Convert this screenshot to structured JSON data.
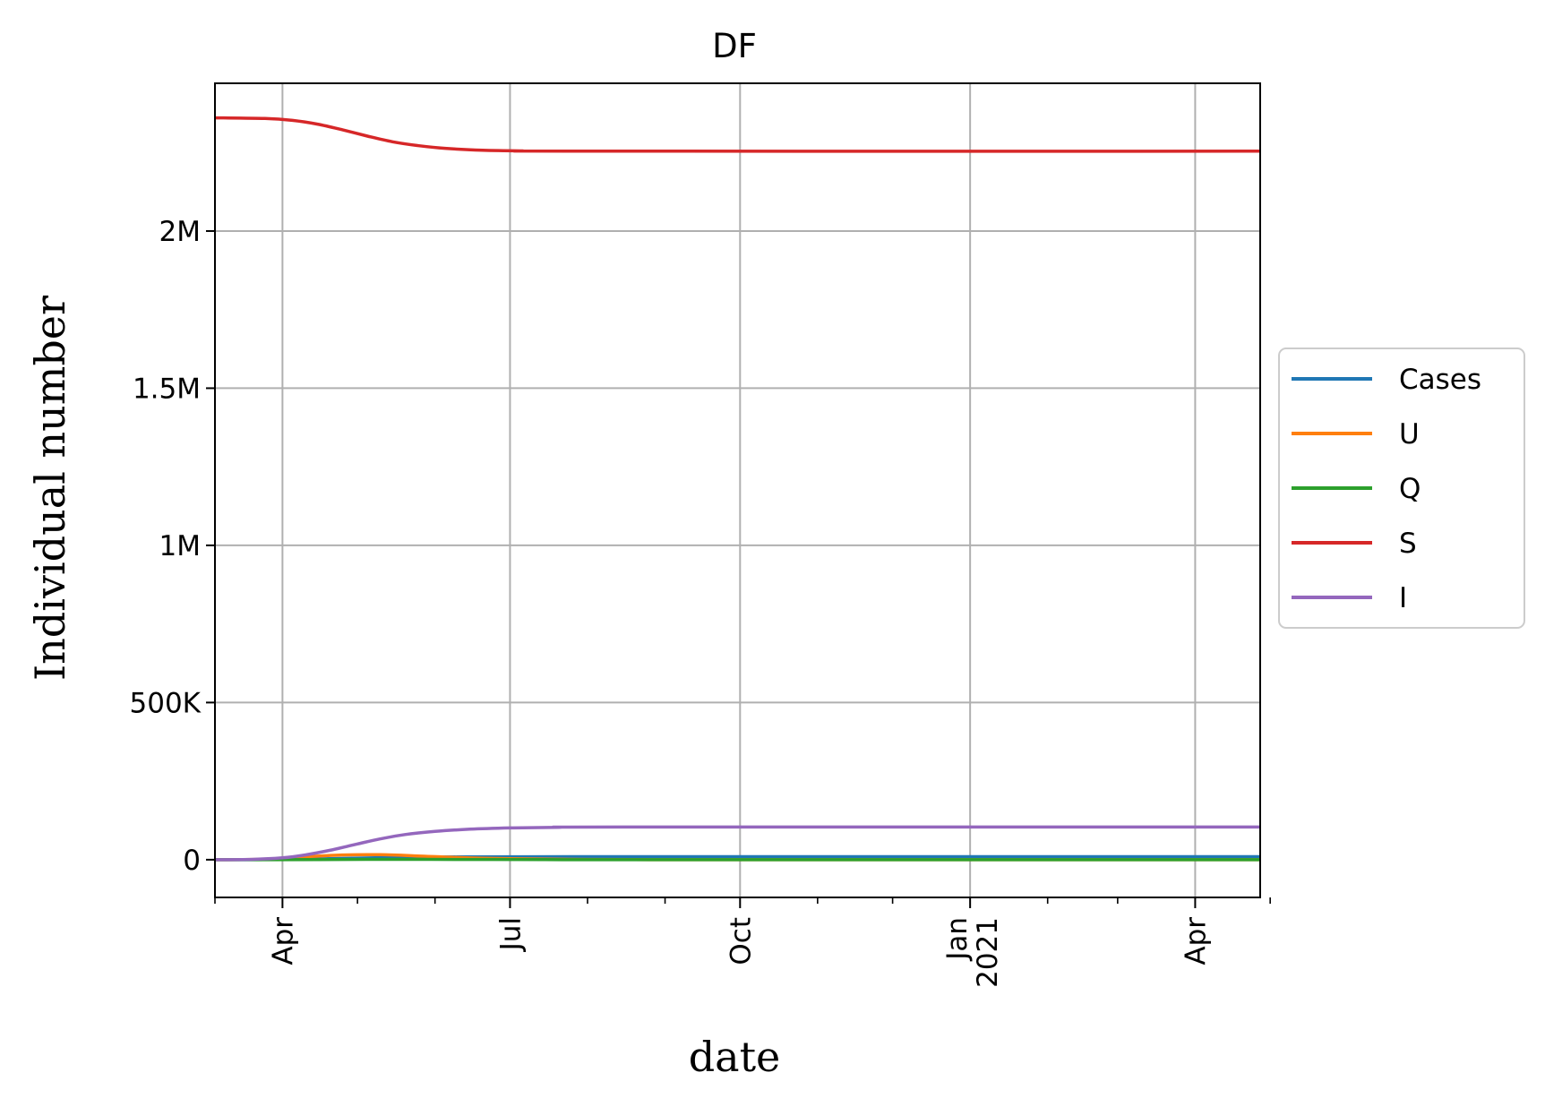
{
  "chart_data": {
    "type": "line",
    "title": "DF",
    "xlabel": "date",
    "ylabel": "Individual number",
    "x_range": [
      "2020-03-05",
      "2021-04-27"
    ],
    "ylim": [
      -120000,
      2470000
    ],
    "y_ticks": [
      {
        "value": 0,
        "label": "0"
      },
      {
        "value": 500000,
        "label": "500K"
      },
      {
        "value": 1000000,
        "label": "1M"
      },
      {
        "value": 1500000,
        "label": "1.5M"
      },
      {
        "value": 2000000,
        "label": "2M"
      }
    ],
    "x_major_ticks": [
      {
        "date": "2020-04-01",
        "label": "Apr",
        "label2": ""
      },
      {
        "date": "2020-07-01",
        "label": "Jul",
        "label2": ""
      },
      {
        "date": "2020-10-01",
        "label": "Oct",
        "label2": ""
      },
      {
        "date": "2021-01-01",
        "label": "Jan",
        "label2": "2021"
      },
      {
        "date": "2021-04-01",
        "label": "Apr",
        "label2": ""
      }
    ],
    "x_minor_ticks": [
      "2020-05-01",
      "2020-06-01",
      "2020-08-01",
      "2020-09-01",
      "2020-11-01",
      "2020-12-01",
      "2021-02-01",
      "2021-03-01",
      "2021-05-01"
    ],
    "grid": true,
    "legend_position": "outside-right",
    "series": [
      {
        "name": "Cases",
        "color": "#1f77b4",
        "points": [
          [
            "2020-03-05",
            0
          ],
          [
            "2020-03-25",
            200
          ],
          [
            "2020-04-10",
            1500
          ],
          [
            "2020-05-01",
            5000
          ],
          [
            "2020-05-20",
            7500
          ],
          [
            "2020-06-10",
            8800
          ],
          [
            "2020-07-01",
            9300
          ],
          [
            "2020-08-01",
            9500
          ],
          [
            "2020-10-01",
            9550
          ],
          [
            "2021-01-01",
            9600
          ],
          [
            "2021-04-27",
            9600
          ]
        ]
      },
      {
        "name": "U",
        "color": "#ff7f0e",
        "points": [
          [
            "2020-03-05",
            0
          ],
          [
            "2020-03-25",
            1500
          ],
          [
            "2020-04-10",
            9000
          ],
          [
            "2020-04-25",
            15000
          ],
          [
            "2020-05-10",
            16000
          ],
          [
            "2020-05-25",
            12000
          ],
          [
            "2020-06-10",
            7000
          ],
          [
            "2020-07-01",
            3000
          ],
          [
            "2020-07-25",
            1000
          ],
          [
            "2020-08-20",
            200
          ],
          [
            "2020-10-01",
            0
          ],
          [
            "2021-04-27",
            0
          ]
        ]
      },
      {
        "name": "Q",
        "color": "#2ca02c",
        "points": [
          [
            "2020-03-05",
            0
          ],
          [
            "2020-04-15",
            500
          ],
          [
            "2020-05-15",
            1200
          ],
          [
            "2020-06-15",
            800
          ],
          [
            "2020-07-15",
            300
          ],
          [
            "2020-09-01",
            0
          ],
          [
            "2021-04-27",
            0
          ]
        ]
      },
      {
        "name": "S",
        "color": "#d62728",
        "points": [
          [
            "2020-03-05",
            2360000
          ],
          [
            "2020-03-25",
            2358000
          ],
          [
            "2020-04-05",
            2352000
          ],
          [
            "2020-04-15",
            2340000
          ],
          [
            "2020-04-25",
            2322000
          ],
          [
            "2020-05-05",
            2302000
          ],
          [
            "2020-05-15",
            2284000
          ],
          [
            "2020-05-25",
            2272000
          ],
          [
            "2020-06-05",
            2263000
          ],
          [
            "2020-06-20",
            2257000
          ],
          [
            "2020-07-05",
            2255000
          ],
          [
            "2020-08-01",
            2254000
          ],
          [
            "2021-04-27",
            2254000
          ]
        ]
      },
      {
        "name": "I",
        "color": "#9467bd",
        "points": [
          [
            "2020-03-05",
            0
          ],
          [
            "2020-03-20",
            1000
          ],
          [
            "2020-04-01",
            6000
          ],
          [
            "2020-04-10",
            15000
          ],
          [
            "2020-04-20",
            30000
          ],
          [
            "2020-05-01",
            50000
          ],
          [
            "2020-05-10",
            66000
          ],
          [
            "2020-05-20",
            80000
          ],
          [
            "2020-06-01",
            90000
          ],
          [
            "2020-06-15",
            97000
          ],
          [
            "2020-07-01",
            101000
          ],
          [
            "2020-07-20",
            103000
          ],
          [
            "2020-08-15",
            104000
          ],
          [
            "2021-04-27",
            104000
          ]
        ]
      }
    ]
  }
}
